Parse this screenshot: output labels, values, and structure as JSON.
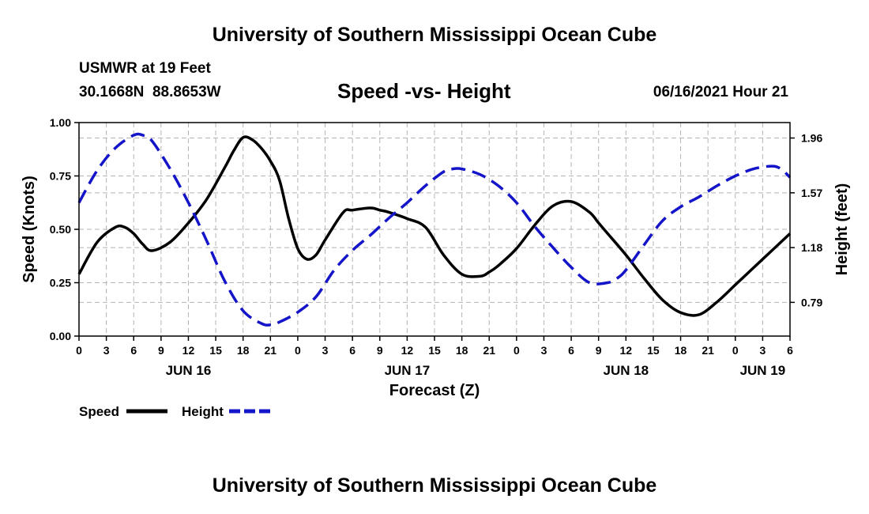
{
  "header": {
    "title_top": "University of Southern Mississippi Ocean Cube",
    "station": "USMWR at 19 Feet",
    "coords": "30.1668N  88.8653W",
    "chart_title": "Speed -vs- Height",
    "timestamp": "06/16/2021 Hour 21",
    "title_bottom": "University of Southern Mississippi Ocean Cube"
  },
  "colors": {
    "speed": "#000000",
    "height": "#1414c8",
    "grid": "#b4b4b4"
  },
  "chart_data": {
    "type": "line",
    "title": "Speed -vs- Height",
    "xlabel": "Forecast (Z)",
    "ylabel": "Speed (Knots)",
    "y2label": "Height (feet)",
    "x_unit": "hours since Jun 16 00Z",
    "xlim": [
      0,
      78
    ],
    "ylim": [
      0,
      1
    ],
    "y2lim": [
      0.55,
      2.07
    ],
    "x_ticks": [
      0,
      3,
      6,
      9,
      12,
      15,
      18,
      21,
      24,
      27,
      30,
      33,
      36,
      39,
      42,
      45,
      48,
      51,
      54,
      57,
      60,
      63,
      66,
      69,
      72,
      75,
      78
    ],
    "x_tick_labels": [
      "0",
      "3",
      "6",
      "9",
      "12",
      "15",
      "18",
      "21",
      "0",
      "3",
      "6",
      "9",
      "12",
      "15",
      "18",
      "21",
      "0",
      "3",
      "6",
      "9",
      "12",
      "15",
      "18",
      "21",
      "0",
      "3",
      "6"
    ],
    "y_ticks": [
      0,
      0.25,
      0.5,
      0.75,
      1
    ],
    "y_tick_labels": [
      "0.00",
      "0.25",
      "0.50",
      "0.75",
      "1.00"
    ],
    "y2_ticks": [
      0.79,
      1.18,
      1.57,
      1.96
    ],
    "y2_tick_labels": [
      "0.79",
      "1.18",
      "1.57",
      "1.96"
    ],
    "date_labels": [
      {
        "label": "JUN 16",
        "x": 12
      },
      {
        "label": "JUN 17",
        "x": 36
      },
      {
        "label": "JUN 18",
        "x": 60
      },
      {
        "label": "JUN 19",
        "x": 75
      }
    ],
    "grid": true,
    "series": [
      {
        "name": "Speed",
        "axis": "left",
        "style": "solid",
        "x": [
          0,
          2,
          4,
          5,
          6,
          7,
          8,
          10,
          12,
          14,
          16,
          17,
          18,
          19,
          20,
          21,
          22,
          23,
          24,
          25,
          26,
          27,
          29,
          30,
          32,
          33,
          34,
          36,
          38,
          40,
          42,
          44,
          45,
          46,
          48,
          50,
          52,
          54,
          56,
          57,
          58,
          60,
          62,
          64,
          66,
          68,
          70,
          72,
          74,
          76,
          78
        ],
        "y": [
          0.29,
          0.44,
          0.51,
          0.51,
          0.48,
          0.43,
          0.4,
          0.44,
          0.53,
          0.64,
          0.79,
          0.87,
          0.93,
          0.92,
          0.88,
          0.82,
          0.73,
          0.55,
          0.41,
          0.36,
          0.38,
          0.45,
          0.58,
          0.59,
          0.6,
          0.59,
          0.58,
          0.55,
          0.51,
          0.38,
          0.29,
          0.28,
          0.3,
          0.33,
          0.41,
          0.52,
          0.61,
          0.63,
          0.58,
          0.53,
          0.48,
          0.38,
          0.27,
          0.17,
          0.11,
          0.1,
          0.16,
          0.24,
          0.32,
          0.4,
          0.48
        ]
      },
      {
        "name": "Height",
        "axis": "right",
        "style": "dashed",
        "x": [
          0,
          2,
          4,
          6,
          7,
          8,
          10,
          12,
          14,
          16,
          18,
          20,
          21,
          22,
          24,
          26,
          28,
          30,
          32,
          34,
          36,
          38,
          40,
          41,
          42,
          44,
          46,
          48,
          50,
          52,
          54,
          56,
          58,
          59,
          60,
          62,
          64,
          66,
          68,
          70,
          72,
          74,
          76,
          77,
          78
        ],
        "y": [
          1.5,
          1.73,
          1.89,
          1.98,
          1.98,
          1.94,
          1.74,
          1.5,
          1.23,
          0.94,
          0.73,
          0.64,
          0.63,
          0.65,
          0.72,
          0.83,
          1.02,
          1.16,
          1.27,
          1.39,
          1.5,
          1.62,
          1.72,
          1.74,
          1.74,
          1.7,
          1.62,
          1.5,
          1.33,
          1.18,
          1.04,
          0.93,
          0.93,
          0.96,
          1.02,
          1.2,
          1.37,
          1.47,
          1.54,
          1.62,
          1.69,
          1.74,
          1.76,
          1.74,
          1.68
        ]
      }
    ],
    "legend": [
      {
        "label": "Speed",
        "style": "solid"
      },
      {
        "label": "Height",
        "style": "dashed"
      }
    ],
    "legend_position": "bottom-left"
  }
}
